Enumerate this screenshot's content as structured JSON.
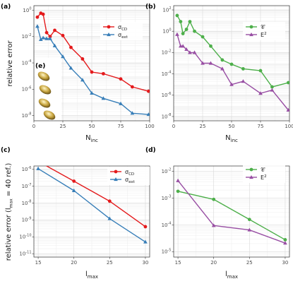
{
  "colors": {
    "red": "#e41a1c",
    "blue": "#377eb8",
    "green": "#4daf4a",
    "purple": "#984ea3",
    "grid_major": "#d9d9d9",
    "grid_minor": "#ededed",
    "axis": "#333333"
  },
  "shared_labels": {
    "y_top": "relative error",
    "y_bottom": "relative error (l",
    "y_bottom_sub": "max",
    "y_bottom_tail": " = 40 ref.)",
    "x_top": "N",
    "x_top_sub": "inc",
    "x_bottom": "l",
    "x_bottom_sub": "max"
  },
  "inset": {
    "label": "(e)"
  },
  "chart_data": [
    {
      "panel": "(a)",
      "type": "line",
      "x_scale": "linear",
      "y_scale": "log",
      "xlim": [
        0,
        100
      ],
      "ylim_log10": [
        -8.4,
        0.35
      ],
      "x_ticks": [
        {
          "v": 0,
          "label": "0"
        },
        {
          "v": 25,
          "label": "25"
        },
        {
          "v": 50,
          "label": "50"
        },
        {
          "v": 75,
          "label": "75"
        },
        {
          "v": 100,
          "label": "100"
        }
      ],
      "y_ticks": [
        {
          "e": 0,
          "label": "10",
          "sup": "0"
        },
        {
          "e": -2,
          "label": "10",
          "sup": "-2"
        },
        {
          "e": -4,
          "label": "10",
          "sup": "-4"
        },
        {
          "e": -6,
          "label": "10",
          "sup": "-6"
        },
        {
          "e": -8,
          "label": "10",
          "sup": "-8"
        }
      ],
      "legend": "top-right",
      "series": [
        {
          "name": "σ",
          "name_sub": "CD",
          "color": "red",
          "marker": "circle",
          "x": [
            3,
            6,
            8,
            11,
            14,
            18,
            25,
            32,
            42,
            50,
            60,
            75,
            85,
            99
          ],
          "y": [
            0.3,
            0.6,
            0.5,
            0.02,
            0.01,
            0.03,
            0.012,
            0.0015,
            0.0002,
            2e-05,
            1.5e-05,
            6e-06,
            1.5e-06,
            7e-07
          ]
        },
        {
          "name": "σ",
          "name_sub": "ext",
          "color": "blue",
          "marker": "triangle",
          "x": [
            3,
            6,
            8,
            11,
            14,
            18,
            25,
            32,
            42,
            50,
            60,
            75,
            85,
            99
          ],
          "y": [
            0.06,
            0.006,
            0.008,
            0.007,
            0.007,
            0.002,
            0.0003,
            4e-05,
            5e-06,
            5e-07,
            2e-07,
            8e-08,
            1.5e-08,
            1.2e-08
          ]
        }
      ]
    },
    {
      "panel": "(b)",
      "type": "line",
      "x_scale": "linear",
      "y_scale": "log",
      "xlim": [
        0,
        100
      ],
      "ylim_log10": [
        -8.4,
        2.4
      ],
      "x_ticks": [
        {
          "v": 0,
          "label": "0"
        },
        {
          "v": 25,
          "label": "25"
        },
        {
          "v": 50,
          "label": "50"
        },
        {
          "v": 75,
          "label": "75"
        },
        {
          "v": 100,
          "label": "100"
        }
      ],
      "y_ticks": [
        {
          "e": 2,
          "label": "10",
          "sup": "2"
        },
        {
          "e": 0,
          "label": "10",
          "sup": "0"
        },
        {
          "e": -2,
          "label": "10",
          "sup": "-2"
        },
        {
          "e": -4,
          "label": "10",
          "sup": "-4"
        },
        {
          "e": -6,
          "label": "10",
          "sup": "-6"
        },
        {
          "e": -8,
          "label": "10",
          "sup": "-8"
        }
      ],
      "legend": "top-right",
      "series": [
        {
          "name": "𝒞",
          "name_sub": "",
          "color": "green",
          "marker": "circle",
          "x": [
            3,
            6,
            8,
            11,
            14,
            18,
            25,
            32,
            42,
            50,
            60,
            75,
            85,
            99
          ],
          "y": [
            30,
            8,
            0.6,
            1.5,
            8,
            1,
            0.3,
            0.04,
            0.002,
            0.0008,
            0.0003,
            0.0002,
            6e-06,
            1.5e-05
          ]
        },
        {
          "name": "E",
          "name_sup": "2",
          "color": "purple",
          "marker": "triangle",
          "x": [
            3,
            6,
            8,
            11,
            14,
            18,
            25,
            32,
            42,
            50,
            60,
            75,
            85,
            99
          ],
          "y": [
            0.5,
            0.04,
            0.04,
            0.02,
            0.01,
            0.01,
            0.001,
            0.001,
            0.0003,
            1e-05,
            2e-05,
            1.5e-06,
            3e-06,
            4e-08
          ]
        }
      ]
    },
    {
      "panel": "(c)",
      "type": "line",
      "x_scale": "linear",
      "y_scale": "log",
      "xlim": [
        14.4,
        30.6
      ],
      "ylim_log10": [
        -11.2,
        -5.8
      ],
      "x_ticks": [
        {
          "v": 15,
          "label": "15"
        },
        {
          "v": 20,
          "label": "20"
        },
        {
          "v": 25,
          "label": "25"
        },
        {
          "v": 30,
          "label": "30"
        }
      ],
      "y_ticks": [
        {
          "e": -6,
          "label": "10",
          "sup": "-6"
        },
        {
          "e": -7,
          "label": "10",
          "sup": "-7"
        },
        {
          "e": -8,
          "label": "10",
          "sup": "-8"
        },
        {
          "e": -9,
          "label": "10",
          "sup": "-9"
        },
        {
          "e": -10,
          "label": "10",
          "sup": "-10"
        },
        {
          "e": -11,
          "label": "10",
          "sup": "-11"
        }
      ],
      "legend": "top-right",
      "series": [
        {
          "name": "σ",
          "name_sub": "CD",
          "color": "red",
          "marker": "circle",
          "x": [
            15,
            20,
            25,
            30
          ],
          "y": [
            3e-06,
            2e-07,
            1.3e-08,
            4e-10
          ]
        },
        {
          "name": "σ",
          "name_sub": "ext",
          "color": "blue",
          "marker": "triangle",
          "x": [
            15,
            20,
            25,
            30
          ],
          "y": [
            1.1e-06,
            5.5e-08,
            1.2e-09,
            5e-11
          ]
        }
      ]
    },
    {
      "panel": "(d)",
      "type": "line",
      "x_scale": "linear",
      "y_scale": "log",
      "xlim": [
        14.4,
        30.6
      ],
      "ylim_log10": [
        -5.2,
        -1.8
      ],
      "x_ticks": [
        {
          "v": 15,
          "label": "15"
        },
        {
          "v": 20,
          "label": "20"
        },
        {
          "v": 25,
          "label": "25"
        },
        {
          "v": 30,
          "label": "30"
        }
      ],
      "y_ticks": [
        {
          "e": -2,
          "label": "10",
          "sup": "-2"
        },
        {
          "e": -3,
          "label": "10",
          "sup": "-3"
        },
        {
          "e": -4,
          "label": "10",
          "sup": "-4"
        },
        {
          "e": -5,
          "label": "10",
          "sup": "-5"
        }
      ],
      "legend": "top-right",
      "series": [
        {
          "name": "𝒞",
          "name_sub": "",
          "color": "green",
          "marker": "circle",
          "x": [
            15,
            20,
            25,
            30
          ],
          "y": [
            0.0018,
            0.0009,
            0.00016,
            2.8e-05
          ]
        },
        {
          "name": "E",
          "name_sup": "2",
          "color": "purple",
          "marker": "triangle",
          "x": [
            15,
            20,
            25,
            30
          ],
          "y": [
            0.0045,
            9.5e-05,
            6.5e-05,
            2.1e-05
          ]
        }
      ]
    }
  ]
}
